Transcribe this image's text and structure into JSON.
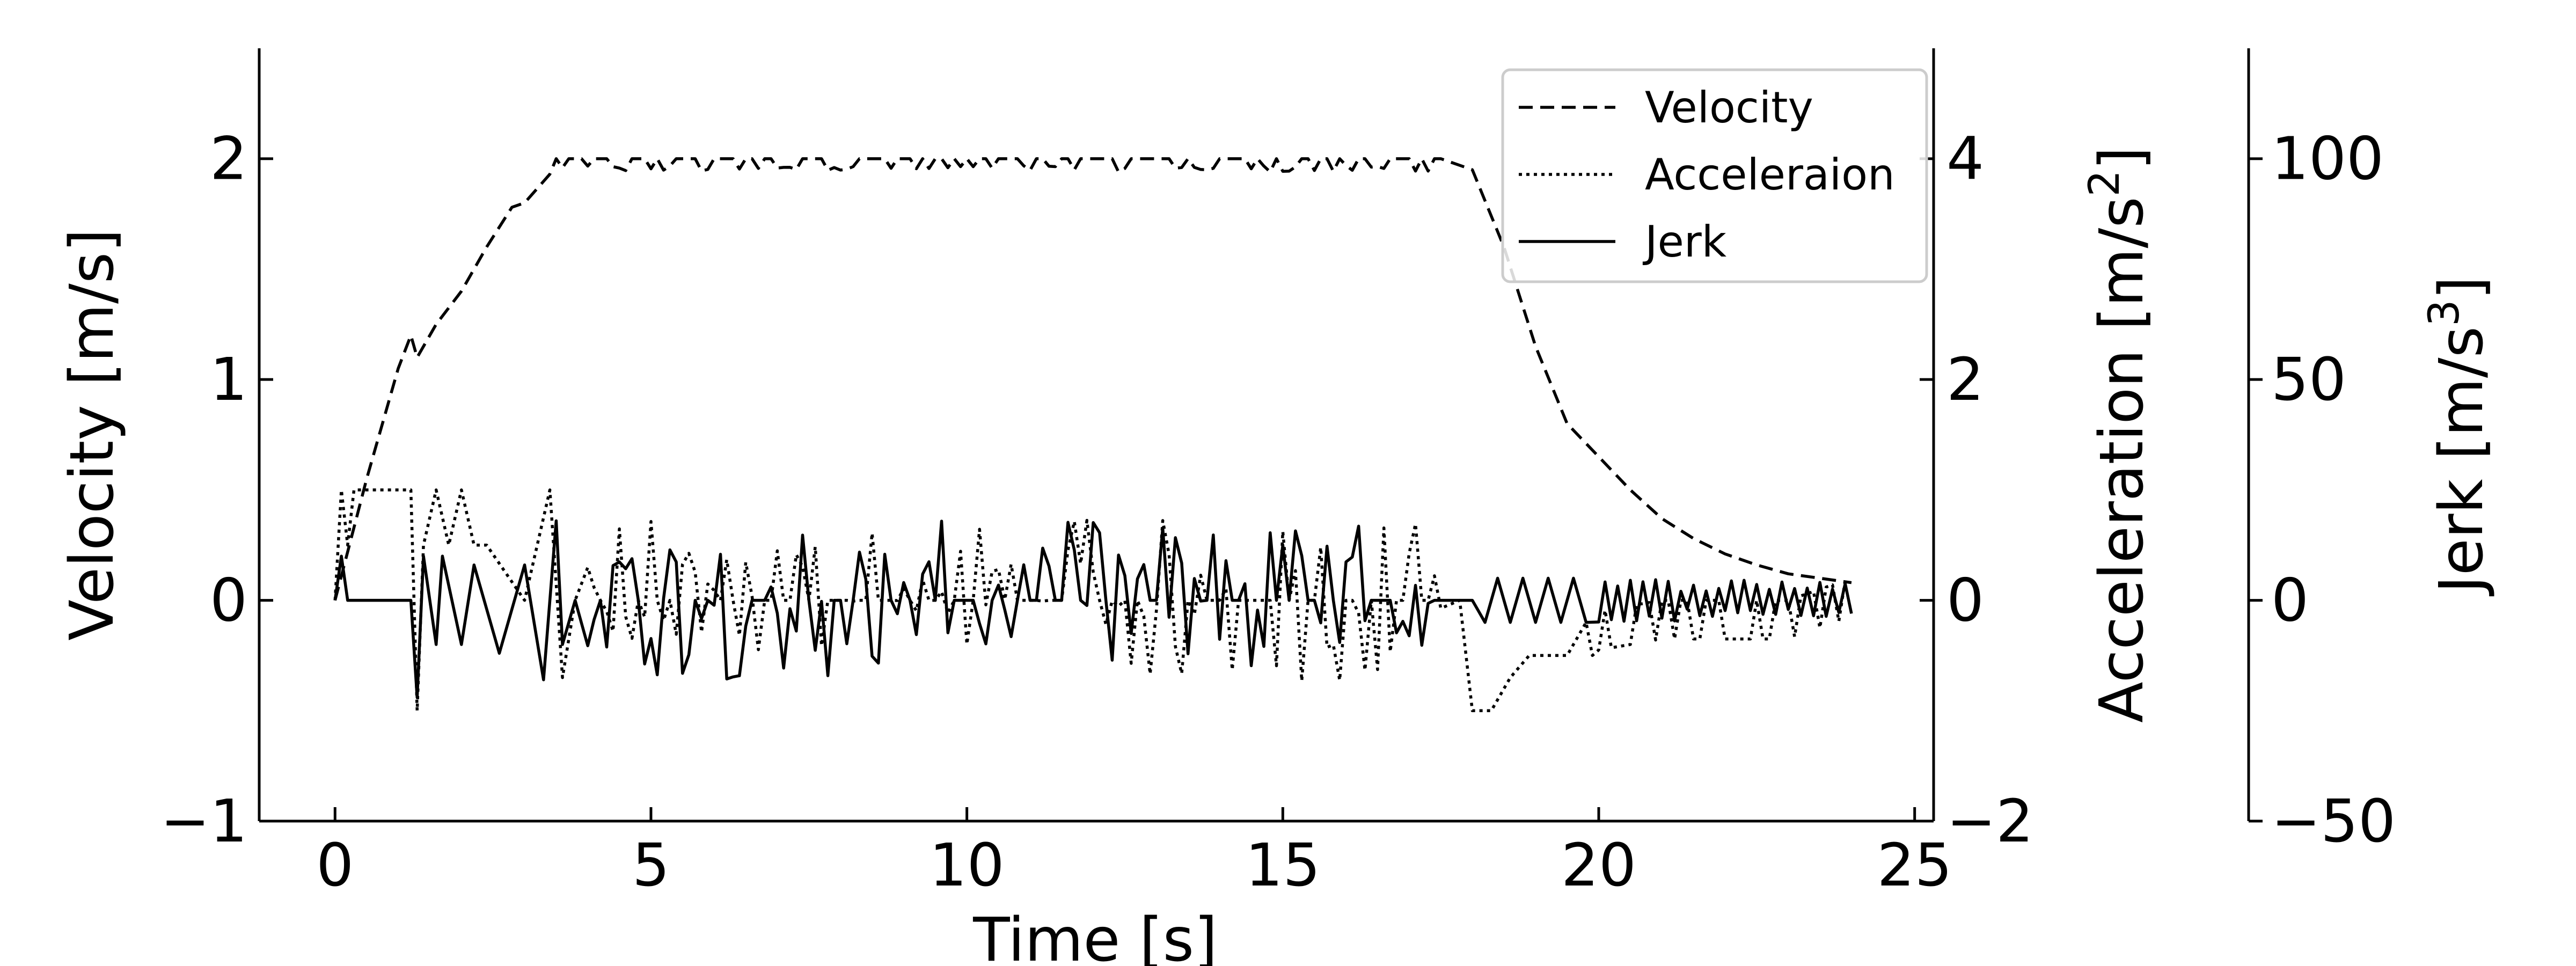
{
  "chart_data": {
    "type": "line",
    "xlabel": "Time [s]",
    "ylabel": "Velocity [m/s]",
    "y2label": "Acceleration [m/s",
    "y2label_sup": "2",
    "y3label": "Jerk [m/s",
    "y3label_sup": "3",
    "label_close": "]",
    "xlim": [
      -1.2,
      25.3
    ],
    "ylim": [
      -1,
      2.5
    ],
    "y2lim": [
      -2,
      5
    ],
    "y3lim": [
      -50,
      125
    ],
    "x_ticks": [
      0,
      5,
      10,
      15,
      20,
      25
    ],
    "x_tick_labels": [
      "0",
      "5",
      "10",
      "15",
      "20",
      "25"
    ],
    "y_ticks": [
      -1,
      0,
      1,
      2
    ],
    "y_tick_labels": [
      "−1",
      "0",
      "1",
      "2"
    ],
    "y2_ticks": [
      -2,
      0,
      2,
      4
    ],
    "y2_tick_labels": [
      "−2",
      "0",
      "2",
      "4"
    ],
    "y3_ticks": [
      -50,
      0,
      50,
      100
    ],
    "y3_tick_labels": [
      "−50",
      "0",
      "50",
      "100"
    ],
    "legend_position": "top-right",
    "grid": false,
    "series": [
      {
        "name": "Velocity",
        "axis": "velocity",
        "style": "dashed",
        "x": [
          0,
          0.5,
          1.0,
          1.2,
          1.3,
          1.6,
          2.0,
          2.4,
          2.8,
          3.0,
          3.4,
          3.6,
          3.8,
          4.0,
          17.5,
          18.0,
          18.5,
          19.0,
          19.5,
          20.0,
          20.5,
          21.0,
          21.5,
          22.0,
          22.5,
          23.0,
          23.5,
          24.0
        ],
        "values": [
          0,
          0.55,
          1.05,
          1.2,
          1.1,
          1.25,
          1.4,
          1.6,
          1.78,
          1.8,
          1.93,
          1.96,
          2.0,
          2.0,
          2.0,
          1.95,
          1.6,
          1.15,
          0.8,
          0.65,
          0.5,
          0.37,
          0.28,
          0.21,
          0.16,
          0.12,
          0.1,
          0.08
        ],
        "noise_start": 3.5,
        "noise_end": 17.5,
        "noise_value": 1.94,
        "noise_step": 0.1,
        "noise_prob": 0.4
      },
      {
        "name": "Acceleraion",
        "axis": "acceleration",
        "style": "dotted",
        "x": [
          0,
          0.1,
          0.2,
          0.3,
          1.2,
          1.3,
          1.4,
          1.6,
          1.8,
          2.0,
          2.2,
          2.4,
          3.0,
          3.4,
          3.6,
          3.8,
          17.8,
          18.0,
          18.3,
          18.6,
          18.9,
          19.2,
          19.5,
          19.8,
          20.0,
          21.0,
          22.0,
          23.0,
          24.0
        ],
        "values": [
          0,
          1.0,
          0.5,
          1.0,
          1.0,
          -1.0,
          0.5,
          1.0,
          0.5,
          1.0,
          0.5,
          0.5,
          0,
          1.0,
          -0.7,
          0,
          0,
          -1.0,
          -1.0,
          -0.7,
          -0.5,
          -0.5,
          -0.5,
          -0.4,
          -0.3,
          -0.2,
          -0.2,
          -0.2,
          0
        ],
        "noise_start": 4.0,
        "noise_end": 17.5,
        "noise_amplitude": 0.75
      },
      {
        "name": "Jerk",
        "axis": "jerk",
        "style": "solid",
        "x": [
          0,
          0.1,
          0.2,
          1.2,
          1.3,
          1.4,
          1.6,
          1.7,
          2.0,
          2.2,
          2.6,
          3.0,
          3.3,
          3.5,
          3.6,
          3.8,
          4.0,
          17.6,
          18.0,
          18.2,
          18.4,
          18.6,
          18.8,
          19.0,
          19.2,
          19.4,
          19.6,
          19.8,
          20.0,
          20.2
        ],
        "values": [
          0,
          10,
          0,
          0,
          -22,
          10,
          -10,
          10,
          -10,
          8,
          -12,
          8,
          -18,
          18,
          -10,
          0,
          0,
          0,
          0,
          -5,
          5,
          -5,
          5,
          -5,
          5,
          -5,
          5,
          -5,
          5,
          -5
        ],
        "noise_start": 4.0,
        "noise_end": 17.5,
        "noise_amplitude": 18,
        "tail_start": 20.0,
        "tail_end": 24.0,
        "tail_amplitude": 5
      }
    ]
  }
}
